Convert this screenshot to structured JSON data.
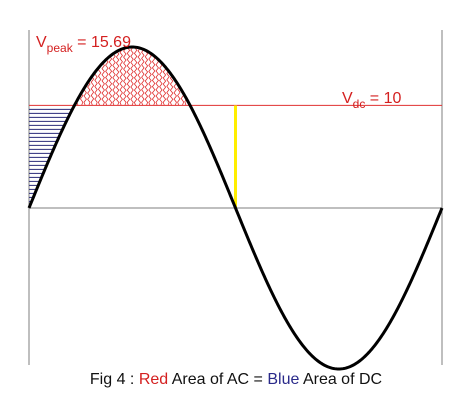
{
  "labels": {
    "vpeak": {
      "symbol": "V",
      "subscript": "peak",
      "equals": " = ",
      "value": "15.69"
    },
    "vdc": {
      "symbol": "V",
      "subscript": "dc",
      "equals": " = ",
      "value": "10"
    }
  },
  "caption": {
    "prefix": "Fig 4 : ",
    "red_word": "Red",
    "middle": " Area of AC = ",
    "blue_word": "Blue",
    "suffix": " Area of DC"
  },
  "colors": {
    "curve": "#000000",
    "axis": "#7f7f7f",
    "dc_line": "#e03030",
    "red_fill": "#e03030",
    "blue_fill": "#2a2a7a",
    "marker": "#ffee00",
    "label_red": "#d42020",
    "label_blue": "#2a2a8a"
  },
  "model": {
    "v_peak": 15.69,
    "v_dc": 10
  }
}
